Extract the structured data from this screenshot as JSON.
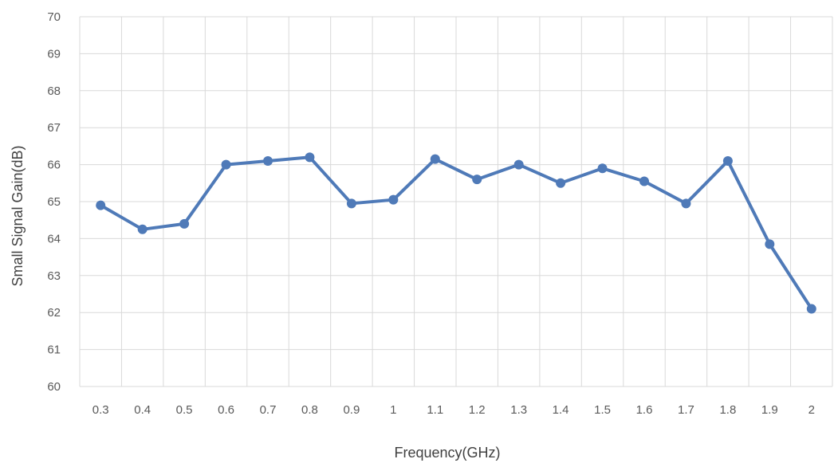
{
  "chart_data": {
    "type": "line",
    "title": "",
    "xlabel": "Frequency(GHz)",
    "ylabel": "Small Signal Gain(dB)",
    "ylim": [
      60,
      70
    ],
    "yticks": [
      "60",
      "61",
      "62",
      "63",
      "64",
      "65",
      "66",
      "67",
      "68",
      "69",
      "70"
    ],
    "categories": [
      "0.3",
      "0.4",
      "0.5",
      "0.6",
      "0.7",
      "0.8",
      "0.9",
      "1",
      "1.1",
      "1.2",
      "1.3",
      "1.4",
      "1.5",
      "1.6",
      "1.7",
      "1.8",
      "1.9",
      "2"
    ],
    "series": [
      {
        "values": [
          64.9,
          64.25,
          64.4,
          66.0,
          66.1,
          66.2,
          64.95,
          65.05,
          66.15,
          65.6,
          66.0,
          65.5,
          65.9,
          65.55,
          64.95,
          66.1,
          63.85,
          62.1
        ],
        "color": "#4f7ab8"
      }
    ],
    "grid": true,
    "legend": "none"
  }
}
